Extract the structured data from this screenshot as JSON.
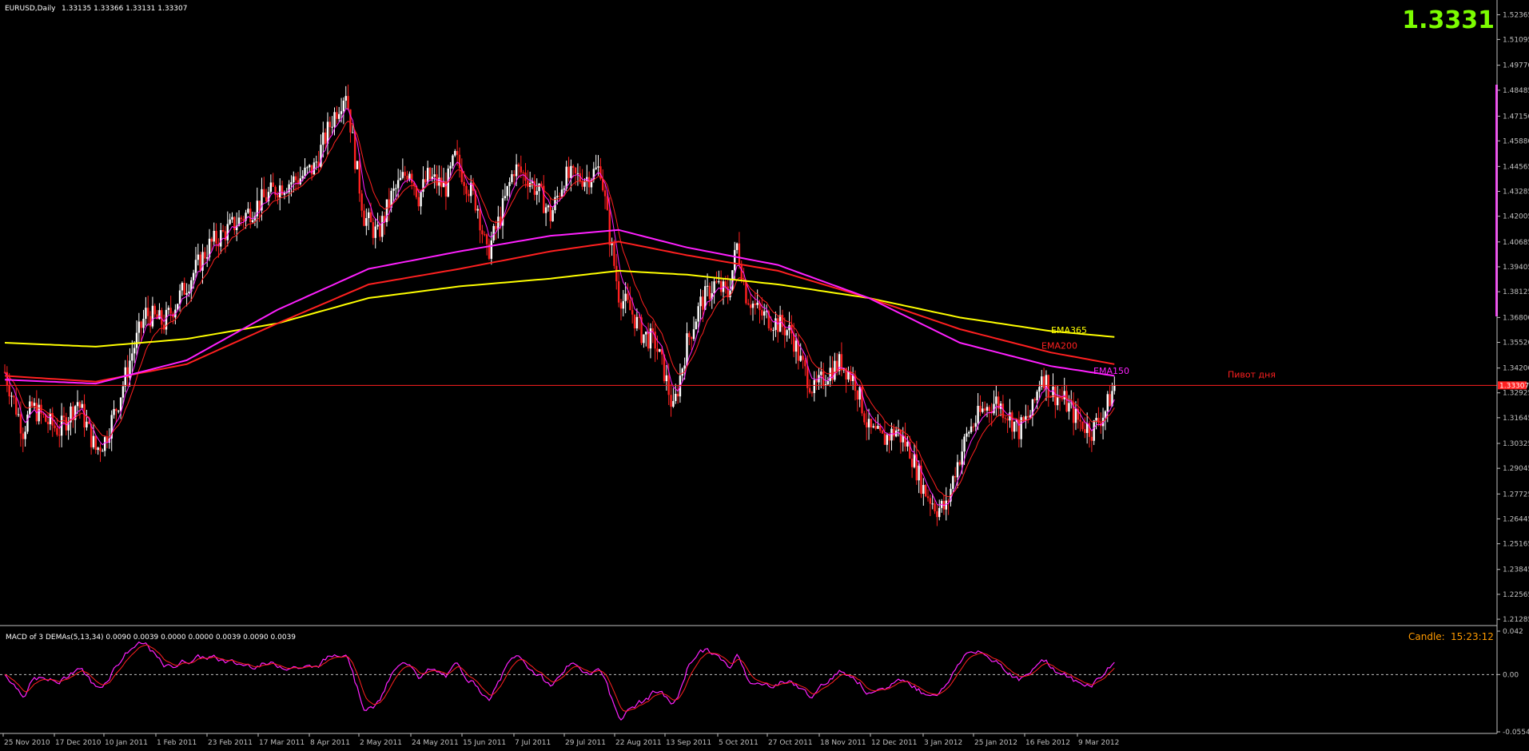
{
  "header": {
    "title": "EURUSD,Daily",
    "ohlc": "1.33135 1.33366 1.33131 1.33307",
    "big_price": "1.3331",
    "big_price_color": "#7cfc00"
  },
  "macd_panel": {
    "title": "MACD of 3 DEMAs(5,13,34) 0.0090 0.0039 0.0000 0.0000 0.0039 0.0090 0.0039",
    "candle_label": "Candle:",
    "candle_time": "15:23:12",
    "axis_ticks": [
      "0.042",
      "0.00",
      "-0.0554"
    ]
  },
  "chart_data": {
    "type": "candlestick",
    "symbol": "EURUSD",
    "timeframe": "Daily",
    "ylim": [
      1.21,
      1.53
    ],
    "yticks": [
      "1.52365",
      "1.51095",
      "1.49770",
      "1.48485",
      "1.47150",
      "1.45880",
      "1.44565",
      "1.43285",
      "1.42005",
      "1.40685",
      "1.39405",
      "1.38125",
      "1.36800",
      "1.35520",
      "1.34200",
      "1.32925",
      "1.31645",
      "1.30325",
      "1.29045",
      "1.27725",
      "1.26445",
      "1.25165",
      "1.23845",
      "1.22565",
      "1.21285"
    ],
    "xticks": [
      "25 Nov 2010",
      "17 Dec 2010",
      "10 Jan 2011",
      "1 Feb 2011",
      "23 Feb 2011",
      "17 Mar 2011",
      "8 Apr 2011",
      "2 May 2011",
      "24 May 2011",
      "15 Jun 2011",
      "7 Jul 2011",
      "29 Jul 2011",
      "22 Aug 2011",
      "13 Sep 2011",
      "5 Oct 2011",
      "27 Oct 2011",
      "18 Nov 2011",
      "12 Dec 2011",
      "3 Jan 2012",
      "25 Jan 2012",
      "16 Feb 2012",
      "9 Mar 2012"
    ],
    "close_path": [
      [
        0,
        1.34
      ],
      [
        8,
        1.31
      ],
      [
        12,
        1.322
      ],
      [
        18,
        1.315
      ],
      [
        24,
        1.31
      ],
      [
        32,
        1.325
      ],
      [
        40,
        1.3
      ],
      [
        44,
        1.305
      ],
      [
        50,
        1.325
      ],
      [
        56,
        1.35
      ],
      [
        62,
        1.37
      ],
      [
        70,
        1.365
      ],
      [
        80,
        1.385
      ],
      [
        90,
        1.405
      ],
      [
        100,
        1.415
      ],
      [
        110,
        1.425
      ],
      [
        120,
        1.435
      ],
      [
        130,
        1.44
      ],
      [
        136,
        1.445
      ],
      [
        144,
        1.47
      ],
      [
        150,
        1.485
      ],
      [
        154,
        1.45
      ],
      [
        158,
        1.42
      ],
      [
        164,
        1.41
      ],
      [
        170,
        1.43
      ],
      [
        178,
        1.445
      ],
      [
        182,
        1.43
      ],
      [
        186,
        1.44
      ],
      [
        194,
        1.435
      ],
      [
        198,
        1.45
      ],
      [
        202,
        1.44
      ],
      [
        208,
        1.425
      ],
      [
        212,
        1.4
      ],
      [
        218,
        1.42
      ],
      [
        224,
        1.445
      ],
      [
        230,
        1.44
      ],
      [
        236,
        1.43
      ],
      [
        240,
        1.42
      ],
      [
        246,
        1.44
      ],
      [
        250,
        1.44
      ],
      [
        256,
        1.44
      ],
      [
        262,
        1.445
      ],
      [
        266,
        1.41
      ],
      [
        270,
        1.38
      ],
      [
        276,
        1.37
      ],
      [
        280,
        1.36
      ],
      [
        286,
        1.355
      ],
      [
        290,
        1.34
      ],
      [
        294,
        1.32
      ],
      [
        300,
        1.355
      ],
      [
        306,
        1.375
      ],
      [
        312,
        1.385
      ],
      [
        318,
        1.38
      ],
      [
        322,
        1.405
      ],
      [
        326,
        1.38
      ],
      [
        332,
        1.37
      ],
      [
        340,
        1.365
      ],
      [
        346,
        1.36
      ],
      [
        350,
        1.345
      ],
      [
        356,
        1.33
      ],
      [
        362,
        1.34
      ],
      [
        368,
        1.345
      ],
      [
        374,
        1.335
      ],
      [
        380,
        1.31
      ],
      [
        386,
        1.305
      ],
      [
        392,
        1.31
      ],
      [
        398,
        1.3
      ],
      [
        404,
        1.28
      ],
      [
        410,
        1.27
      ],
      [
        414,
        1.27
      ],
      [
        418,
        1.29
      ],
      [
        424,
        1.31
      ],
      [
        430,
        1.32
      ],
      [
        436,
        1.325
      ],
      [
        440,
        1.32
      ],
      [
        446,
        1.31
      ],
      [
        452,
        1.32
      ],
      [
        456,
        1.34
      ],
      [
        460,
        1.33
      ],
      [
        466,
        1.325
      ],
      [
        472,
        1.315
      ],
      [
        478,
        1.31
      ],
      [
        484,
        1.32
      ],
      [
        488,
        1.333
      ]
    ],
    "series": [
      {
        "name": "EMA365",
        "color": "#ffff00",
        "points": [
          [
            0,
            1.355
          ],
          [
            40,
            1.353
          ],
          [
            80,
            1.357
          ],
          [
            120,
            1.365
          ],
          [
            160,
            1.378
          ],
          [
            200,
            1.384
          ],
          [
            240,
            1.388
          ],
          [
            270,
            1.392
          ],
          [
            300,
            1.39
          ],
          [
            340,
            1.385
          ],
          [
            380,
            1.378
          ],
          [
            420,
            1.368
          ],
          [
            460,
            1.361
          ],
          [
            488,
            1.358
          ]
        ]
      },
      {
        "name": "EMA200",
        "color": "#ff2020",
        "points": [
          [
            0,
            1.338
          ],
          [
            40,
            1.335
          ],
          [
            80,
            1.344
          ],
          [
            120,
            1.365
          ],
          [
            160,
            1.385
          ],
          [
            200,
            1.393
          ],
          [
            240,
            1.402
          ],
          [
            270,
            1.407
          ],
          [
            300,
            1.4
          ],
          [
            340,
            1.392
          ],
          [
            380,
            1.378
          ],
          [
            420,
            1.362
          ],
          [
            460,
            1.35
          ],
          [
            488,
            1.344
          ]
        ]
      },
      {
        "name": "EMA150",
        "color": "#ff20ff",
        "points": [
          [
            0,
            1.336
          ],
          [
            40,
            1.334
          ],
          [
            80,
            1.346
          ],
          [
            120,
            1.372
          ],
          [
            160,
            1.393
          ],
          [
            200,
            1.402
          ],
          [
            240,
            1.41
          ],
          [
            270,
            1.413
          ],
          [
            300,
            1.404
          ],
          [
            340,
            1.395
          ],
          [
            380,
            1.378
          ],
          [
            420,
            1.355
          ],
          [
            460,
            1.343
          ],
          [
            488,
            1.338
          ]
        ]
      }
    ],
    "pivot": {
      "value": 1.3331,
      "label": "Пивот дня",
      "color": "#ff2020"
    }
  }
}
